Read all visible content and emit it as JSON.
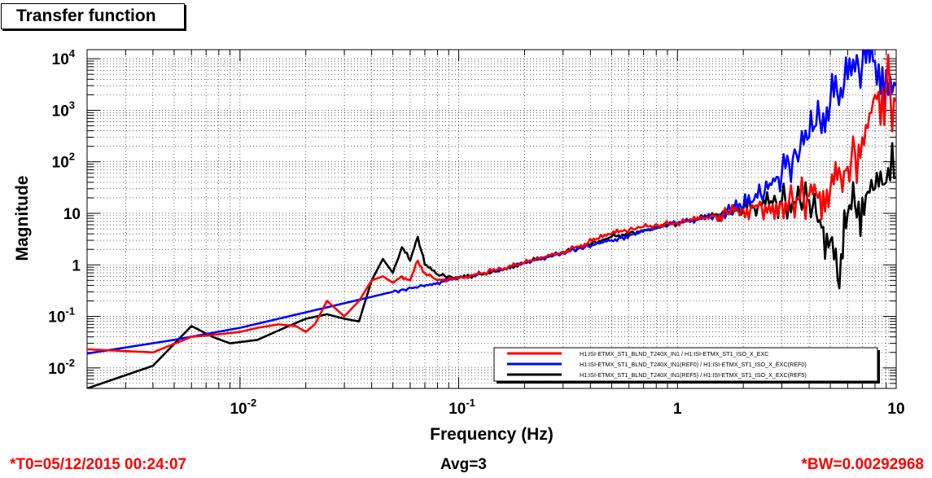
{
  "window": {
    "title": "Transfer function"
  },
  "footer": {
    "t0": "*T0=05/12/2015 00:24:07",
    "avg": "Avg=3",
    "bw": "*BW=0.00292968"
  },
  "chart_data": {
    "type": "line",
    "xlabel": "Frequency (Hz)",
    "ylabel": "Magnitude",
    "xscale": "log",
    "yscale": "log",
    "xlim": [
      0.002,
      10
    ],
    "ylim": [
      0.004,
      15000
    ],
    "grid": true,
    "legend_position": "bottom-right",
    "x_ticks": [
      {
        "value": 0.01,
        "label": "10",
        "exp": "-2"
      },
      {
        "value": 0.1,
        "label": "10",
        "exp": "-1"
      },
      {
        "value": 1,
        "label": "1",
        "exp": ""
      },
      {
        "value": 10,
        "label": "10",
        "exp": ""
      }
    ],
    "y_ticks": [
      {
        "value": 0.01,
        "label": "10",
        "exp": "-2"
      },
      {
        "value": 0.1,
        "label": "10",
        "exp": "-1"
      },
      {
        "value": 1,
        "label": "1",
        "exp": ""
      },
      {
        "value": 10,
        "label": "10",
        "exp": ""
      },
      {
        "value": 100,
        "label": "10",
        "exp": "2"
      },
      {
        "value": 1000,
        "label": "10",
        "exp": "3"
      },
      {
        "value": 10000,
        "label": "10",
        "exp": "4"
      }
    ],
    "series": [
      {
        "name": "H1:ISI-ETMX_ST1_BLND_T240X_IN1(REF5) / H1:ISI-ETMX_ST1_ISO_X_EXC(REF5)",
        "color": "#000000",
        "x": [
          0.002,
          0.004,
          0.006,
          0.0075,
          0.009,
          0.012,
          0.016,
          0.02,
          0.025,
          0.03,
          0.035,
          0.04,
          0.045,
          0.05,
          0.055,
          0.06,
          0.065,
          0.07,
          0.08,
          0.1,
          0.15,
          0.2,
          0.3,
          0.5,
          1,
          2,
          3,
          4,
          5,
          5.5,
          6,
          7,
          8,
          9,
          10
        ],
        "y": [
          0.004,
          0.011,
          0.065,
          0.04,
          0.03,
          0.035,
          0.06,
          0.09,
          0.11,
          0.09,
          0.08,
          0.5,
          1.3,
          0.7,
          2.2,
          1.2,
          3.5,
          1.0,
          0.65,
          0.55,
          0.75,
          1.1,
          1.7,
          3.5,
          6.5,
          12,
          17,
          18,
          3,
          0.35,
          10,
          20,
          30,
          40,
          50
        ]
      },
      {
        "name": "H1:ISI-ETMX_ST1_BLND_T240X_IN1(REF0) / H1:ISI-ETMX_ST1_ISO_X_EXC(REF0)",
        "color": "#0000ff",
        "x": [
          0.002,
          0.005,
          0.01,
          0.015,
          0.02,
          0.03,
          0.05,
          0.08,
          0.1,
          0.15,
          0.2,
          0.3,
          0.5,
          0.7,
          1,
          1.5,
          2,
          2.5,
          3,
          4,
          5,
          6,
          7,
          8,
          9,
          10
        ],
        "y": [
          0.019,
          0.035,
          0.06,
          0.09,
          0.12,
          0.18,
          0.3,
          0.45,
          0.55,
          0.8,
          1.1,
          1.7,
          3,
          4.5,
          6.5,
          9,
          13,
          25,
          60,
          300,
          1500,
          4000,
          8000,
          9000,
          6000,
          3000
        ]
      },
      {
        "name": "H1:ISI-ETMX_ST1_BLND_T240X_IN1 / H1:ISI-ETMX_ST1_ISO_X_EXC",
        "color": "#ff0000",
        "x": [
          0.002,
          0.004,
          0.006,
          0.008,
          0.01,
          0.012,
          0.015,
          0.018,
          0.02,
          0.022,
          0.025,
          0.03,
          0.035,
          0.04,
          0.045,
          0.05,
          0.055,
          0.06,
          0.065,
          0.07,
          0.08,
          0.1,
          0.15,
          0.2,
          0.3,
          0.5,
          0.7,
          1,
          1.5,
          2,
          3,
          4,
          5,
          6,
          7,
          8,
          9,
          10
        ],
        "y": [
          0.023,
          0.02,
          0.04,
          0.045,
          0.05,
          0.06,
          0.07,
          0.065,
          0.05,
          0.07,
          0.2,
          0.1,
          0.2,
          0.5,
          0.6,
          0.45,
          0.6,
          0.5,
          1.2,
          0.7,
          0.5,
          0.55,
          0.8,
          1.1,
          1.8,
          4.0,
          5.5,
          6.5,
          9,
          12,
          16,
          22,
          30,
          80,
          300,
          2000,
          3000,
          1500
        ]
      }
    ]
  }
}
